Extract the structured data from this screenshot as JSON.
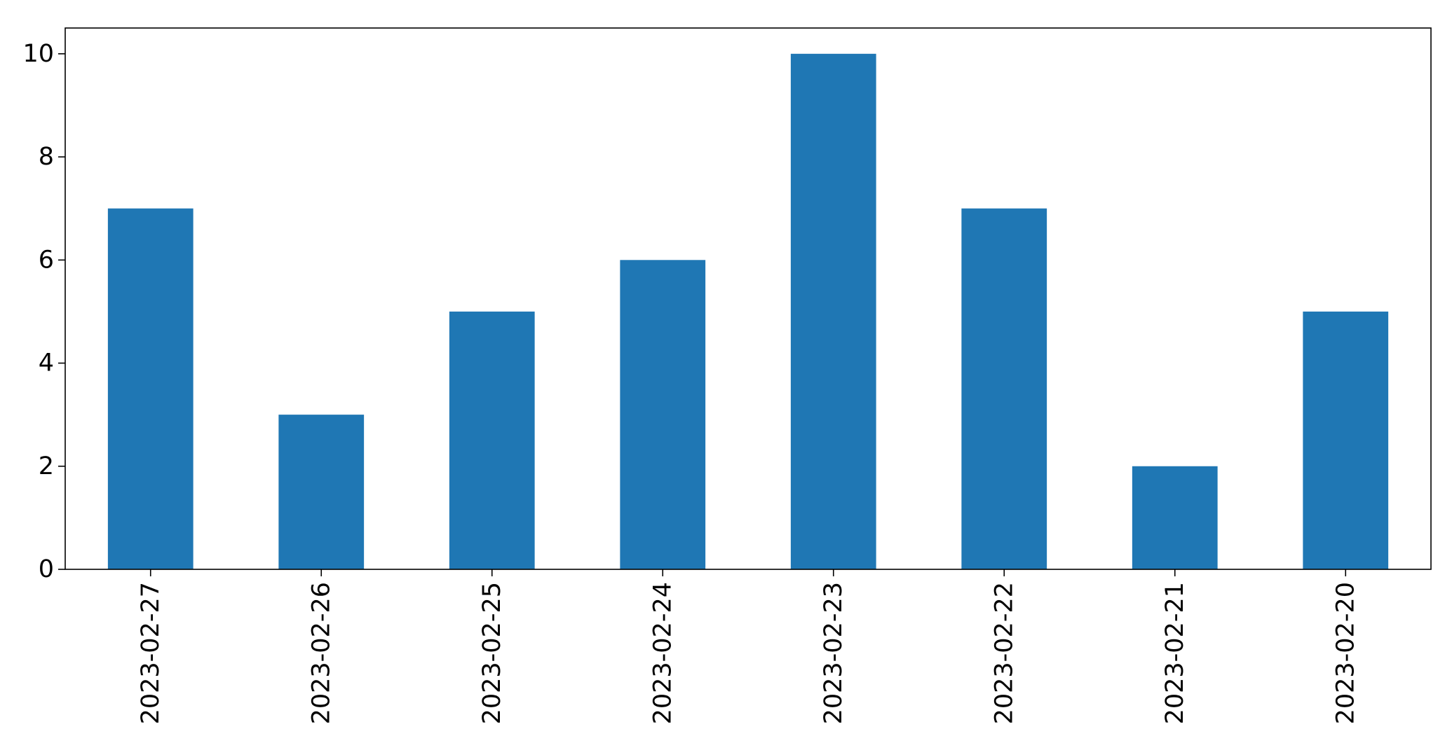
{
  "chart_data": {
    "type": "bar",
    "title": "",
    "xlabel": "",
    "ylabel": "",
    "categories": [
      "2023-02-27",
      "2023-02-26",
      "2023-02-25",
      "2023-02-24",
      "2023-02-23",
      "2023-02-22",
      "2023-02-21",
      "2023-02-20"
    ],
    "values": [
      7,
      3,
      5,
      6,
      10,
      7,
      2,
      5
    ],
    "ylim": [
      0,
      10.5
    ],
    "yticks": [
      0,
      2,
      4,
      6,
      8,
      10
    ],
    "bar_color": "#1f77b4",
    "grid": false,
    "legend": "none",
    "x_tick_rotation": "vertical"
  }
}
